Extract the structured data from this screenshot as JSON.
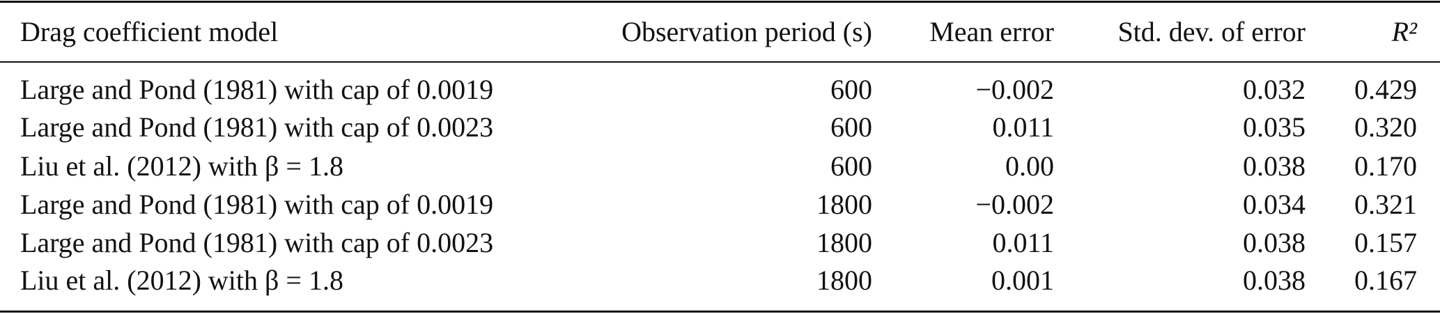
{
  "table": {
    "headers": [
      "Drag coefficient model",
      "Observation period (s)",
      "Mean error",
      "Std. dev. of error",
      "R²"
    ],
    "rows": [
      [
        "Large and Pond (1981) with cap of 0.0019",
        "600",
        "−0.002",
        "0.032",
        "0.429"
      ],
      [
        "Large and Pond (1981) with cap of 0.0023",
        "600",
        "0.011",
        "0.035",
        "0.320"
      ],
      [
        "Liu et al. (2012) with β = 1.8",
        "600",
        "0.00",
        "0.038",
        "0.170"
      ],
      [
        "Large and Pond (1981) with cap of 0.0019",
        "1800",
        "−0.002",
        "0.034",
        "0.321"
      ],
      [
        "Large and Pond (1981) with cap of 0.0023",
        "1800",
        "0.011",
        "0.038",
        "0.157"
      ],
      [
        "Liu et al. (2012) with β = 1.8",
        "1800",
        "0.001",
        "0.038",
        "0.167"
      ]
    ]
  }
}
